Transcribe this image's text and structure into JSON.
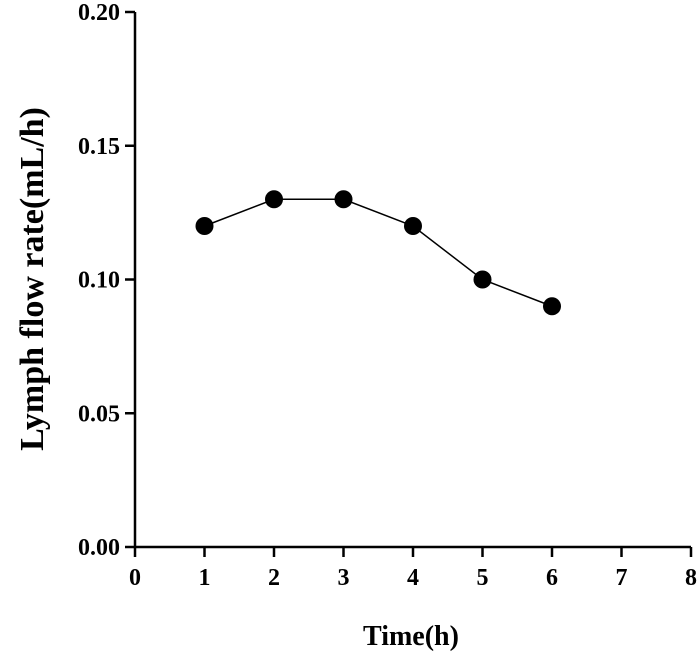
{
  "chart_data": {
    "type": "line",
    "title": "",
    "xlabel": "Time(h)",
    "ylabel": "Lymph flow rate(mL/h)",
    "xlim": [
      0,
      8
    ],
    "ylim": [
      0,
      0.2
    ],
    "xticks": [
      "0",
      "1",
      "2",
      "3",
      "4",
      "5",
      "6",
      "7",
      "8"
    ],
    "yticks": [
      "0.00",
      "0.05",
      "0.10",
      "0.15",
      "0.20"
    ],
    "grid": false,
    "series": [
      {
        "x": [
          1,
          2,
          3,
          4,
          5,
          6
        ],
        "y": [
          0.12,
          0.13,
          0.13,
          0.12,
          0.1,
          0.09
        ],
        "color": "#000000",
        "marker": "circle"
      }
    ]
  }
}
